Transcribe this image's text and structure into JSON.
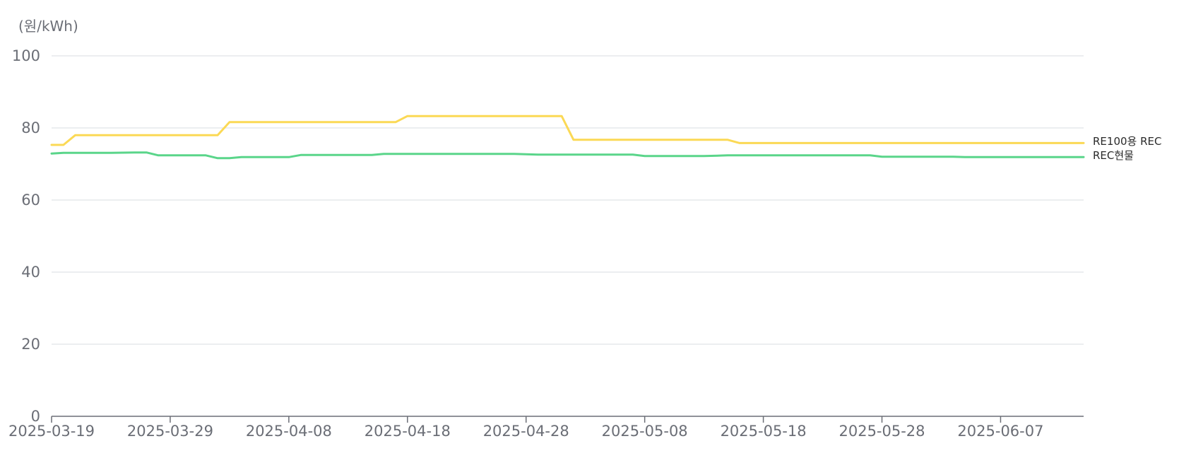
{
  "chart_data": {
    "type": "line",
    "title": "",
    "unit_label": "(원/kWh)",
    "xlabel": "",
    "ylabel": "",
    "ylim": [
      0,
      100
    ],
    "y_ticks": [
      0,
      20,
      40,
      60,
      80,
      100
    ],
    "x_start": "2025-03-19",
    "x_end": "2025-06-14",
    "x_tick_labels": [
      "2025-03-19",
      "2025-03-29",
      "2025-04-08",
      "2025-04-18",
      "2025-04-28",
      "2025-05-08",
      "2025-05-18",
      "2025-05-28",
      "2025-06-07"
    ],
    "grid": true,
    "legend": "line-end labels",
    "series": [
      {
        "name": "RE100용 REC",
        "color": "#fbd955",
        "points": [
          {
            "x": "2025-03-19",
            "y": 75.3
          },
          {
            "x": "2025-03-20",
            "y": 75.3
          },
          {
            "x": "2025-03-21",
            "y": 78.0
          },
          {
            "x": "2025-04-02",
            "y": 78.0
          },
          {
            "x": "2025-04-03",
            "y": 81.6
          },
          {
            "x": "2025-04-17",
            "y": 81.6
          },
          {
            "x": "2025-04-18",
            "y": 83.3
          },
          {
            "x": "2025-05-01",
            "y": 83.3
          },
          {
            "x": "2025-05-02",
            "y": 76.7
          },
          {
            "x": "2025-05-15",
            "y": 76.7
          },
          {
            "x": "2025-05-16",
            "y": 75.8
          },
          {
            "x": "2025-06-14",
            "y": 75.8
          }
        ]
      },
      {
        "name": "REC현물",
        "color": "#5ad58a",
        "points": [
          {
            "x": "2025-03-19",
            "y": 72.9
          },
          {
            "x": "2025-03-20",
            "y": 73.1
          },
          {
            "x": "2025-03-24",
            "y": 73.1
          },
          {
            "x": "2025-03-26",
            "y": 73.2
          },
          {
            "x": "2025-03-27",
            "y": 73.2
          },
          {
            "x": "2025-03-28",
            "y": 72.4
          },
          {
            "x": "2025-04-01",
            "y": 72.4
          },
          {
            "x": "2025-04-02",
            "y": 71.6
          },
          {
            "x": "2025-04-03",
            "y": 71.6
          },
          {
            "x": "2025-04-04",
            "y": 71.9
          },
          {
            "x": "2025-04-08",
            "y": 71.9
          },
          {
            "x": "2025-04-09",
            "y": 72.5
          },
          {
            "x": "2025-04-15",
            "y": 72.5
          },
          {
            "x": "2025-04-16",
            "y": 72.8
          },
          {
            "x": "2025-04-27",
            "y": 72.8
          },
          {
            "x": "2025-04-29",
            "y": 72.6
          },
          {
            "x": "2025-05-07",
            "y": 72.6
          },
          {
            "x": "2025-05-08",
            "y": 72.2
          },
          {
            "x": "2025-05-13",
            "y": 72.2
          },
          {
            "x": "2025-05-15",
            "y": 72.4
          },
          {
            "x": "2025-05-27",
            "y": 72.4
          },
          {
            "x": "2025-05-28",
            "y": 72.0
          },
          {
            "x": "2025-06-03",
            "y": 72.0
          },
          {
            "x": "2025-06-04",
            "y": 71.9
          },
          {
            "x": "2025-06-14",
            "y": 71.9
          }
        ]
      }
    ]
  }
}
